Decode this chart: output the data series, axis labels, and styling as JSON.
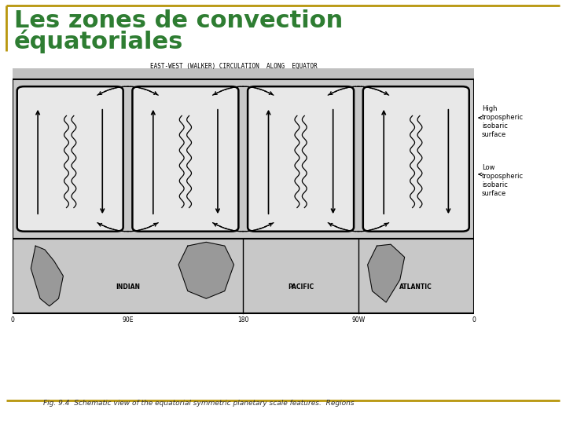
{
  "title_line1": "Les zones de convection",
  "title_line2": "équatoriales",
  "title_color": "#2e7d32",
  "title_fontsize": 22,
  "border_color": "#b8960c",
  "bg_color": "#ffffff",
  "diagram_bg": "#c8c8c8",
  "cell_bg": "#d0d0d0",
  "fig_caption": "Fig. 9.4  Schematic view of the equatorial symmetric planetary scale features.  Regions",
  "diagram_title": "EAST-WEST (WALKER) CIRCULATION  ALONG  EQUATOR",
  "label_indian": "INDIAN",
  "label_pacific": "PACIFIC",
  "label_atlantic": "ATLANTIC",
  "label_0_left": "0",
  "label_90e": "90E",
  "label_180": "180",
  "label_90w": "90W",
  "label_0_right": "0",
  "label_high": "High\ntropospheric\nisobaric\nsurface",
  "label_low": "Low\ntropospheric\nisobaric\nsurface"
}
